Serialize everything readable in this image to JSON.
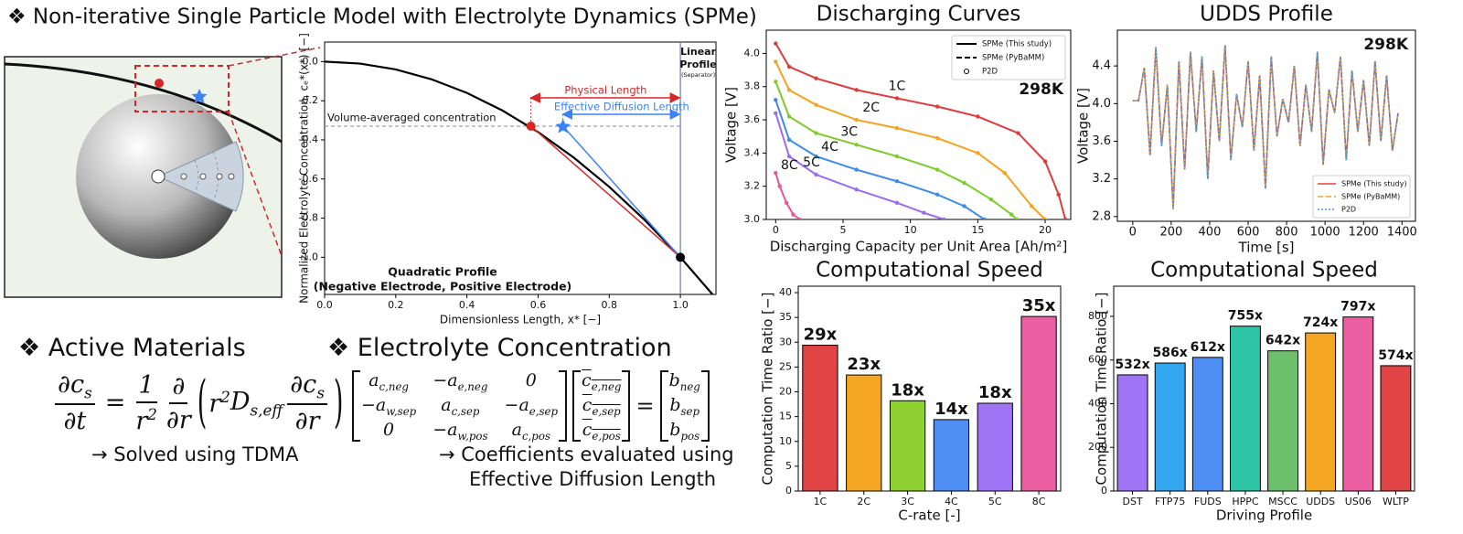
{
  "title": "❖ Non-iterative Single Particle Model with Electrolyte Dynamics (SPMe)",
  "chart_data": [
    {
      "type": "line",
      "xlabel": "Dimensionless Length, x* [−]",
      "ylabel": "Normalized Electrolyte Concentration, cₑ*(x*) [−]",
      "xlim": [
        0,
        1.1
      ],
      "ylim": [
        -1.19,
        0.1
      ],
      "xticks": [
        {
          "value": 0,
          "label": "0.0"
        },
        0.2,
        0.4,
        0.6,
        0.8,
        {
          "value": 1,
          "label": "1.0"
        }
      ],
      "yticks": [
        {
          "value": 0,
          "label": "0.0"
        },
        -0.2,
        -0.4,
        -0.6,
        -0.8,
        {
          "value": -1,
          "label": "-1.0"
        }
      ],
      "x": [
        0,
        0.1,
        0.2,
        0.3,
        0.4,
        0.5,
        0.6,
        0.7,
        0.8,
        0.9,
        1.0,
        1.1
      ],
      "values": [
        0,
        -0.01,
        -0.04,
        -0.09,
        -0.16,
        -0.25,
        -0.36,
        -0.49,
        -0.64,
        -0.81,
        -1.0,
        -1.21
      ],
      "color": "#000000",
      "points": [
        {
          "x": 0.58,
          "y": -0.33,
          "color": "#d62728"
        },
        {
          "x": 0.67,
          "y": -0.33,
          "color": "#3b82f6"
        },
        {
          "x": 1.0,
          "y": -1.0,
          "color": "#000000"
        }
      ],
      "volume_averaged_label": "Volume-averaged concentration",
      "physical_length_label": "Physical Length",
      "effective_length_label": "Effective Diffusion Length",
      "separator_label": [
        "Linear",
        "Profile"
      ],
      "separator_sublabel": "(Separator)",
      "quadratic_label": [
        "Quadratic Profile",
        "(Negative Electrode, Positive Electrode)"
      ]
    },
    {
      "type": "line",
      "title": "Discharging Curves",
      "xlabel": "Discharging Capacity per Unit Area [Ah/m²]",
      "ylabel": "Voltage [V]",
      "xlim": [
        -0.7,
        21.9
      ],
      "ylim": [
        3.0,
        4.14
      ],
      "xticks": [
        0,
        5,
        10,
        15,
        20
      ],
      "yticks": [
        {
          "value": 3,
          "label": "3.0"
        },
        3.2,
        3.4,
        3.6,
        3.8,
        {
          "value": 4,
          "label": "4.0"
        }
      ],
      "annotation": "298K",
      "legend": "upper right",
      "legend_entries": [
        {
          "name": "SPMe (This study)",
          "style": "solid"
        },
        {
          "name": "SPMe (PyBaMM)",
          "style": "dashed"
        },
        {
          "name": "P2D",
          "style": "marker"
        }
      ],
      "series": [
        {
          "name": "1C",
          "color": "#e03a3a",
          "x": [
            0,
            1,
            3,
            6,
            9,
            12,
            15,
            18,
            20,
            21,
            21.5
          ],
          "values": [
            4.06,
            3.92,
            3.85,
            3.78,
            3.73,
            3.68,
            3.62,
            3.52,
            3.35,
            3.15,
            3.0
          ]
        },
        {
          "name": "2C",
          "color": "#f5a21f",
          "x": [
            0,
            1,
            3,
            6,
            9,
            12,
            15,
            17,
            19,
            20
          ],
          "values": [
            3.95,
            3.78,
            3.69,
            3.6,
            3.55,
            3.49,
            3.4,
            3.28,
            3.08,
            3.0
          ]
        },
        {
          "name": "3C",
          "color": "#7dcc2a",
          "x": [
            0,
            1,
            3,
            6,
            9,
            12,
            14,
            16,
            17.5,
            17.9
          ],
          "values": [
            3.83,
            3.62,
            3.52,
            3.45,
            3.38,
            3.3,
            3.22,
            3.12,
            3.03,
            3.0
          ]
        },
        {
          "name": "4C",
          "color": "#3b8bea",
          "x": [
            0,
            1,
            3,
            6,
            9,
            12,
            14,
            15.5
          ],
          "values": [
            3.72,
            3.48,
            3.38,
            3.3,
            3.23,
            3.15,
            3.08,
            3.0
          ]
        },
        {
          "name": "5C",
          "color": "#9b6cf0",
          "x": [
            0,
            1,
            3,
            6,
            9,
            11,
            12.5
          ],
          "values": [
            3.64,
            3.38,
            3.27,
            3.18,
            3.1,
            3.04,
            3.0
          ]
        },
        {
          "name": "8C",
          "color": "#e8559a",
          "x": [
            0,
            0.3,
            0.8,
            1.3,
            1.8
          ],
          "values": [
            3.28,
            3.2,
            3.1,
            3.03,
            3.0
          ]
        }
      ]
    },
    {
      "type": "line",
      "title": "UDDS Profile",
      "xlabel": "Time [s]",
      "ylabel": "Voltage [V]",
      "xlim": [
        -80,
        1470
      ],
      "ylim": [
        2.75,
        4.78
      ],
      "xticks": [
        0,
        200,
        400,
        600,
        800,
        1000,
        1200,
        1400
      ],
      "yticks": [
        2.8,
        3.2,
        3.6,
        {
          "value": 4,
          "label": "4.0"
        },
        4.4
      ],
      "annotation": "298K",
      "legend": "lower right",
      "x": [
        0,
        30,
        60,
        90,
        120,
        150,
        180,
        210,
        240,
        270,
        300,
        330,
        360,
        390,
        420,
        450,
        480,
        510,
        540,
        570,
        600,
        630,
        660,
        690,
        720,
        750,
        780,
        810,
        840,
        870,
        900,
        930,
        960,
        990,
        1020,
        1050,
        1080,
        1110,
        1140,
        1170,
        1200,
        1230,
        1260,
        1290,
        1320,
        1350,
        1380
      ],
      "series": [
        {
          "name": "SPMe (This study)",
          "color": "#e8423a",
          "dash": "solid",
          "values": [
            4.03,
            4.03,
            4.38,
            3.45,
            4.6,
            3.55,
            4.2,
            2.88,
            4.45,
            3.3,
            4.55,
            3.7,
            4.5,
            3.2,
            4.35,
            3.6,
            4.62,
            3.4,
            4.1,
            3.75,
            4.45,
            3.5,
            4.3,
            3.1,
            4.5,
            3.65,
            4.05,
            3.8,
            4.4,
            3.55,
            4.2,
            3.7,
            4.55,
            3.35,
            4.15,
            3.9,
            4.5,
            3.4,
            4.35,
            3.7,
            4.25,
            3.55,
            4.45,
            3.6,
            4.3,
            3.5,
            3.9
          ]
        },
        {
          "name": "SPMe (PyBaMM)",
          "color": "#f5a21f",
          "dash": "dashed",
          "values": [
            4.03,
            4.03,
            4.38,
            3.45,
            4.6,
            3.55,
            4.2,
            2.88,
            4.45,
            3.3,
            4.55,
            3.7,
            4.5,
            3.2,
            4.35,
            3.6,
            4.62,
            3.4,
            4.1,
            3.75,
            4.45,
            3.5,
            4.3,
            3.1,
            4.5,
            3.65,
            4.05,
            3.8,
            4.4,
            3.55,
            4.2,
            3.7,
            4.55,
            3.35,
            4.15,
            3.9,
            4.5,
            3.4,
            4.35,
            3.7,
            4.25,
            3.55,
            4.45,
            3.6,
            4.3,
            3.5,
            3.9
          ]
        },
        {
          "name": "P2D",
          "color": "#4a90e2",
          "dash": "dotted",
          "values": [
            4.03,
            4.03,
            4.38,
            3.45,
            4.6,
            3.55,
            4.2,
            2.88,
            4.45,
            3.3,
            4.55,
            3.7,
            4.5,
            3.2,
            4.35,
            3.6,
            4.62,
            3.4,
            4.1,
            3.75,
            4.45,
            3.5,
            4.3,
            3.1,
            4.5,
            3.65,
            4.05,
            3.8,
            4.4,
            3.55,
            4.2,
            3.7,
            4.55,
            3.35,
            4.15,
            3.9,
            4.5,
            3.4,
            4.35,
            3.7,
            4.25,
            3.55,
            4.45,
            3.6,
            4.3,
            3.5,
            3.9
          ]
        }
      ]
    },
    {
      "type": "bar",
      "title": "Computational Speed",
      "xlabel": "C-rate [-]",
      "ylabel": "Computation Time Ratio [−]",
      "ylim": [
        0,
        41.3
      ],
      "yticks": [
        0,
        5,
        10,
        15,
        20,
        25,
        30,
        35,
        40
      ],
      "categories": [
        "1C",
        "2C",
        "3C",
        "4C",
        "5C",
        "8C"
      ],
      "values": [
        29.4,
        23.4,
        18.2,
        14.4,
        17.7,
        35.2
      ],
      "value_labels": [
        "29x",
        "23x",
        "18x",
        "14x",
        "18x",
        "35x"
      ],
      "colors": [
        "#e04444",
        "#f5a623",
        "#8fd130",
        "#4f8ef5",
        "#9f74f5",
        "#ec5fa3"
      ]
    },
    {
      "type": "bar",
      "title": "Computational Speed",
      "xlabel": "Driving Profile",
      "ylabel": "Computation Time Ratio [−]",
      "ylim": [
        0,
        938
      ],
      "yticks": [
        0,
        200,
        400,
        600,
        800
      ],
      "categories": [
        "DST",
        "FTP75",
        "FUDS",
        "HPPC",
        "MSCC",
        "UDDS",
        "US06",
        "WLTP"
      ],
      "values": [
        532,
        586,
        612,
        755,
        642,
        724,
        797,
        574
      ],
      "value_labels": [
        "532x",
        "586x",
        "612x",
        "755x",
        "642x",
        "724x",
        "797x",
        "574x"
      ],
      "colors": [
        "#9f74f5",
        "#35a7f0",
        "#4f8ef5",
        "#2ec4a6",
        "#6cc06c",
        "#f5a623",
        "#ec5fa3",
        "#e04444"
      ]
    }
  ],
  "active_materials": {
    "heading": "❖ Active Materials",
    "equation": [
      {
        "num": [
          {
            "t": "∂c",
            "sub": "s"
          }
        ],
        "den": [
          {
            "t": "∂t"
          }
        ]
      },
      {
        "t": "="
      },
      {
        "num": [
          {
            "t": "1"
          }
        ],
        "den": [
          {
            "t": "r",
            "sup": "2"
          }
        ]
      },
      {
        "num": [
          {
            "t": "∂"
          }
        ],
        "den": [
          {
            "t": "∂r"
          }
        ]
      },
      {
        "t": "("
      },
      {
        "t": "r",
        "sup": "2"
      },
      {
        "t": "D",
        "sub": "s,eff"
      },
      {
        "num": [
          {
            "t": "∂c",
            "sub": "s"
          }
        ],
        "den": [
          {
            "t": "∂r"
          }
        ]
      },
      {
        "t": ")"
      }
    ],
    "note": "→ Solved using TDMA"
  },
  "electrolyte": {
    "heading": "❖ Electrolyte Concentration",
    "matrix": [
      [
        {
          "t": "a",
          "sub": "c,neg"
        },
        {
          "t": "−a",
          "sub": "e,neg"
        },
        {
          "t": "0"
        }
      ],
      [
        {
          "t": "−a",
          "sub": "w,sep"
        },
        {
          "t": "a",
          "sub": "c,sep"
        },
        {
          "t": "−a",
          "sub": "e,sep"
        }
      ],
      [
        {
          "t": "0"
        },
        {
          "t": "−a",
          "sub": "w,pos"
        },
        {
          "t": "a",
          "sub": "c,pos"
        }
      ]
    ],
    "unknowns": [
      {
        "t": "c",
        "sub": "e,neg"
      },
      {
        "t": "c",
        "sub": "e,sep"
      },
      {
        "t": "c",
        "sub": "e,pos"
      }
    ],
    "equals": "=",
    "rhs": [
      {
        "t": "b",
        "sub": "neg"
      },
      {
        "t": "b",
        "sub": "sep"
      },
      {
        "t": "b",
        "sub": "pos"
      }
    ],
    "note": [
      "→ Coefficients evaluated using",
      "Effective Diffusion Length"
    ]
  }
}
